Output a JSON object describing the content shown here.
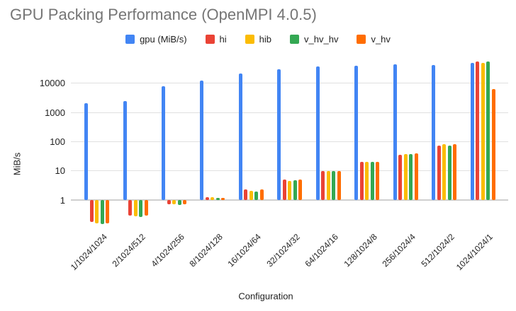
{
  "title": "GPU Packing Performance (OpenMPI 4.0.5)",
  "chart_data": {
    "type": "bar",
    "title": "GPU Packing Performance (OpenMPI 4.0.5)",
    "xlabel": "Configuration",
    "ylabel": "MiB/s",
    "y_scale": "log",
    "y_ticks": [
      1,
      10,
      100,
      1000,
      10000
    ],
    "ylim": [
      0.13,
      60000
    ],
    "grid": true,
    "legend_position": "top",
    "categories": [
      "1/1024/1024",
      "2/1024/512",
      "4/1024/256",
      "8/1024/128",
      "16/1024/64",
      "32/1024/32",
      "64/1024/16",
      "128/1024/8",
      "256/1024/4",
      "512/1024/2",
      "1024/1024/1"
    ],
    "series": [
      {
        "name": "gpu (MiB/s)",
        "color": "#4285F4",
        "values": [
          2100,
          2450,
          8000,
          12500,
          22000,
          31000,
          37000,
          39000,
          44000,
          41000,
          50000
        ]
      },
      {
        "name": "hi",
        "color": "#EA4335",
        "values": [
          0.18,
          0.29,
          0.72,
          1.25,
          2.3,
          5.0,
          10,
          20,
          35,
          75,
          55000
        ]
      },
      {
        "name": "hib",
        "color": "#FBBC04",
        "values": [
          0.16,
          0.27,
          0.7,
          1.25,
          2.1,
          4.5,
          10,
          20,
          38,
          82,
          50000
        ]
      },
      {
        "name": "v_hv_hv",
        "color": "#34A853",
        "values": [
          0.15,
          0.26,
          0.68,
          1.2,
          2.0,
          4.7,
          10,
          20,
          38,
          72,
          56000
        ]
      },
      {
        "name": "v_hv",
        "color": "#FF6D00",
        "values": [
          0.155,
          0.3,
          0.72,
          1.2,
          2.3,
          5.0,
          10,
          20,
          40,
          83,
          6500
        ]
      }
    ]
  }
}
